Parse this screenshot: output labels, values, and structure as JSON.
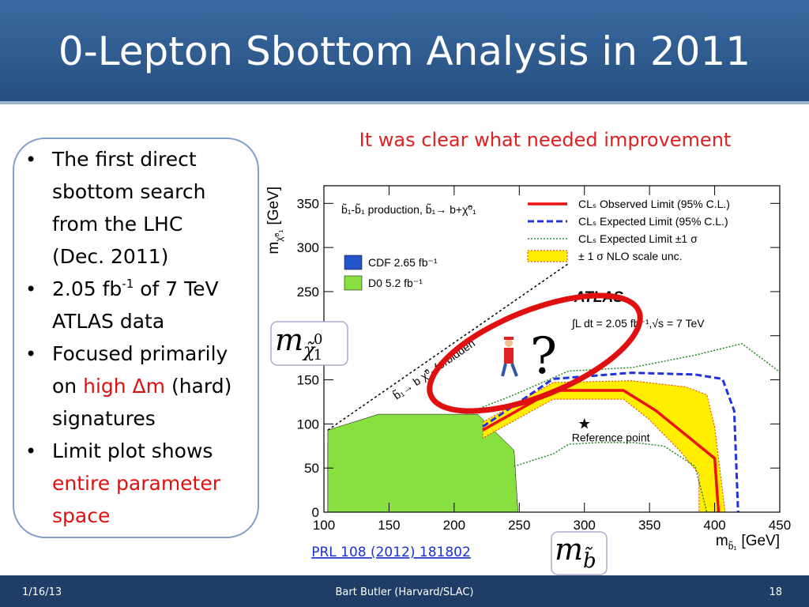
{
  "header": {
    "title": "0-Lepton Sbottom Analysis in 2011"
  },
  "subtitle": "It was clear what needed improvement",
  "bullets": [
    [
      [
        {
          "text": "The first direct"
        }
      ],
      [
        {
          "text": "sbottom search"
        }
      ],
      [
        {
          "text": "from the LHC"
        }
      ],
      [
        {
          "text": "(Dec. 2011)"
        }
      ]
    ],
    [
      [
        {
          "text": "2.05 fb"
        },
        {
          "text": "-1",
          "style": "sup"
        },
        {
          "text": " of 7 TeV"
        }
      ],
      [
        {
          "text": "ATLAS data"
        }
      ]
    ],
    [
      [
        {
          "text": "Focused primarily"
        }
      ],
      [
        {
          "text": "on "
        },
        {
          "text": "high Δm",
          "style": "red"
        },
        {
          "text": " (hard)"
        }
      ],
      [
        {
          "text": "signatures"
        }
      ]
    ],
    [
      [
        {
          "text": "Limit plot shows"
        }
      ],
      [
        {
          "text": "entire parameter",
          "style": "red"
        }
      ],
      [
        {
          "text": "space",
          "style": "red"
        }
      ]
    ]
  ],
  "chart_data": {
    "type": "exclusion",
    "xlabel": {
      "main": "m",
      "sub": "b̃₁",
      "unit": "[GeV]"
    },
    "ylabel": {
      "main": "m",
      "sub": "χ̃⁰₁",
      "unit": "[GeV]"
    },
    "xlim": [
      100,
      450
    ],
    "xticks": [
      100,
      150,
      200,
      250,
      300,
      350,
      400,
      450
    ],
    "ylim": [
      0,
      370
    ],
    "yticks": [
      0,
      50,
      100,
      150,
      200,
      250,
      300,
      350
    ],
    "process": "b̃₁-b̃₁ production, b̃₁→ b+χ̃⁰₁",
    "experiment": "ATLAS",
    "lumi": "∫L dt = 2.05 fb⁻¹,√s = 7 TeV",
    "regions": [
      {
        "name": "CDF 2.65 fb⁻¹",
        "color": "#2255cc",
        "x": [
          103,
          136,
          167,
          203,
          224,
          236,
          103
        ],
        "values": [
          79,
          83,
          93,
          90,
          70,
          0,
          0
        ]
      },
      {
        "name": "D0 5.2 fb⁻¹",
        "color": "#88e040",
        "x": [
          103,
          142,
          218,
          246,
          249,
          103
        ],
        "values": [
          93,
          111,
          111,
          70,
          0,
          0
        ]
      }
    ],
    "series": [
      {
        "name": "CLₛ Observed Limit (95% C.L.)",
        "color": "#ee1111",
        "style": "solid",
        "x": [
          222,
          276,
          330,
          355,
          385,
          400,
          403
        ],
        "values": [
          93,
          138,
          138,
          115,
          79,
          61,
          0
        ]
      },
      {
        "name": "CLₛ Expected Limit (95% C.L.)",
        "color": "#2233dd",
        "style": "dashed",
        "x": [
          222,
          276,
          336,
          385,
          406,
          415,
          418
        ],
        "values": [
          97,
          151,
          158,
          156,
          151,
          115,
          0
        ]
      },
      {
        "name": "CLₛ Expected Limit ±1 σ",
        "color": "#228822",
        "style": "dotted",
        "x": [
          215,
          246,
          288,
          337,
          385,
          421,
          449
        ],
        "values": [
          115,
          133,
          160,
          164,
          178,
          191,
          160
        ]
      },
      {
        "name": "± 1 σ NLO scale unc.",
        "color": "#ffee00",
        "style": "band",
        "x": [
          222,
          276,
          336,
          378,
          394,
          400,
          408,
          388,
          388,
          373,
          349,
          330,
          276,
          222
        ],
        "values": [
          102,
          147,
          149,
          142,
          133,
          97,
          0,
          0,
          43,
          70,
          106,
          128,
          128,
          84
        ]
      }
    ],
    "lower_sigma": {
      "color": "#228822",
      "x": [
        246,
        276,
        288,
        312,
        337,
        361,
        385,
        394
      ],
      "values": [
        52,
        66,
        77,
        79,
        79,
        75,
        52,
        0
      ]
    },
    "forbidden": {
      "label": "b̃₁→ b χ̃⁰₁ forbidden",
      "x": [
        103,
        288
      ],
      "values": [
        93,
        282
      ]
    },
    "reference_point": {
      "label": "Reference point",
      "x": 300,
      "y": 100
    }
  },
  "annotations": {
    "question": "?",
    "mass_chi": {
      "main": "m",
      "sub": "χ̃",
      "subsub": "1",
      "sup": "0"
    },
    "mass_b": {
      "main": "m",
      "sub": "b̃"
    }
  },
  "link": "PRL 108 (2012) 181802",
  "footer": {
    "date": "1/16/13",
    "author": "Bart Butler (Harvard/SLAC)",
    "page": "18"
  }
}
